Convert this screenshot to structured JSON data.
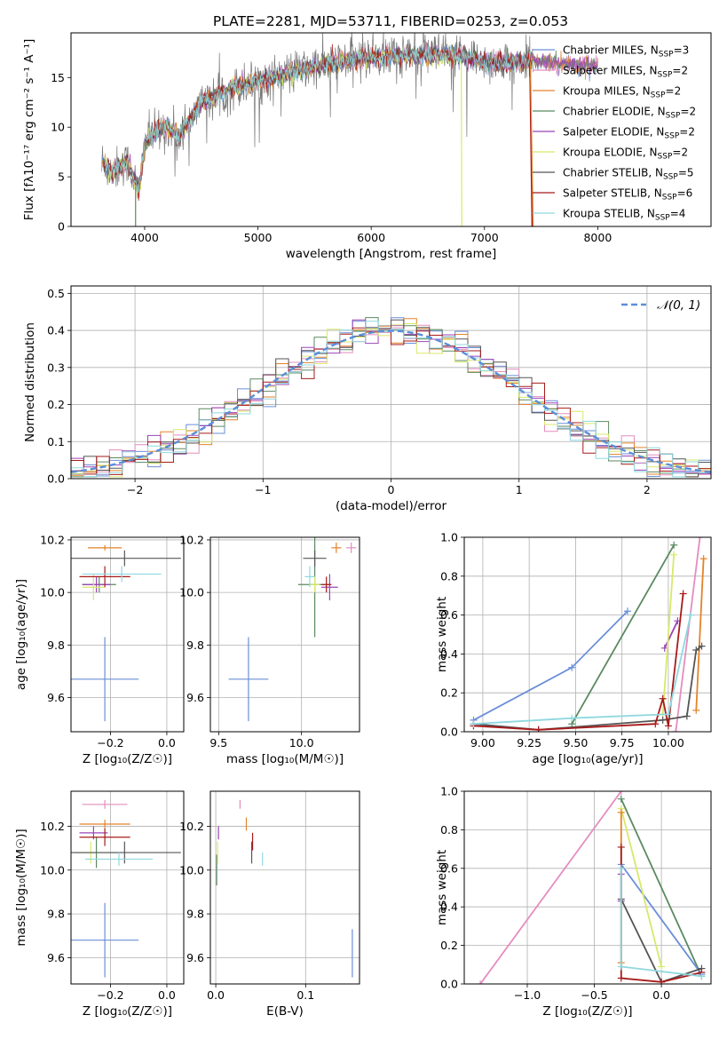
{
  "chart_data": [
    {
      "type": "line",
      "title": "PLATE=2281, MJD=53711, FIBERID=0253, z=0.053",
      "xlabel": "wavelength [Angstrom, rest frame]",
      "ylabel": "Flux [fλ10⁻¹⁷ erg cm⁻² s⁻¹ A⁻¹]",
      "xlim": [
        3350,
        9000
      ],
      "ylim": [
        0,
        19.5
      ],
      "xticks": [
        "4000",
        "5000",
        "6000",
        "7000",
        "8000"
      ],
      "yticks": [
        "0",
        "5",
        "10",
        "15"
      ],
      "legend_position": "top-right",
      "series": [
        {
          "name": "Chabrier MILES, N_SSP=3",
          "legend": "Chabrier MILES, N",
          "nssp": "=3",
          "color": "#6a8fd8"
        },
        {
          "name": "Salpeter MILES, N_SSP=2",
          "legend": "Salpeter MILES, N",
          "nssp": "=2",
          "color": "#e38dbf"
        },
        {
          "name": "Kroupa MILES, N_SSP=2",
          "legend": "Kroupa MILES, N",
          "nssp": "=2",
          "color": "#e3832a"
        },
        {
          "name": "Chabrier ELODIE, N_SSP=2",
          "legend": "Chabrier ELODIE, N",
          "nssp": "=2",
          "color": "#5b8a62"
        },
        {
          "name": "Salpeter ELODIE, N_SSP=2",
          "legend": "Salpeter ELODIE, N",
          "nssp": "=2",
          "color": "#9b45b8"
        },
        {
          "name": "Kroupa ELODIE, N_SSP=2",
          "legend": "Kroupa ELODIE, N",
          "nssp": "=2",
          "color": "#d8e86a"
        },
        {
          "name": "Chabrier STELIB, N_SSP=5",
          "legend": "Chabrier STELIB, N",
          "nssp": "=5",
          "color": "#555555"
        },
        {
          "name": "Salpeter STELIB, N_SSP=6",
          "legend": "Salpeter STELIB, N",
          "nssp": "=6",
          "color": "#a81a1a"
        },
        {
          "name": "Kroupa STELIB, N_SSP=4",
          "legend": "Kroupa STELIB, N",
          "nssp": "=4",
          "color": "#8fd8df"
        }
      ],
      "spectrum_shape": {
        "x": [
          3600,
          3700,
          3850,
          3950,
          4000,
          4100,
          4200,
          4300,
          4500,
          4800,
          5200,
          5600,
          5900,
          6200,
          6500,
          6800,
          7000,
          7200,
          7400,
          7600,
          7800
        ],
        "y": [
          7,
          5.5,
          6.5,
          3.5,
          8.5,
          9.5,
          10,
          9,
          12.5,
          14,
          15.2,
          16.3,
          17,
          17.2,
          17.3,
          17.1,
          16.7,
          16.4,
          16.8,
          16.5,
          16.3
        ]
      }
    },
    {
      "type": "line",
      "xlabel": "(data-model)/error",
      "ylabel": "Normed distribution",
      "xlim": [
        -2.5,
        2.5
      ],
      "ylim": [
        0,
        0.52
      ],
      "xticks": [
        "−2",
        "−1",
        "0",
        "1",
        "2"
      ],
      "yticks": [
        "0.0",
        "0.1",
        "0.2",
        "0.3",
        "0.4",
        "0.5"
      ],
      "legend": "𝒩(0, 1)",
      "legend_position": "top-right",
      "grid": true
    },
    {
      "type": "scatter",
      "xlabel": "Z [log₁₀(Z/Z☉)]",
      "ylabel": "age  [log₁₀(age/yr)]",
      "xlim": [
        -0.34,
        0.06
      ],
      "ylim": [
        9.47,
        10.21
      ],
      "xticks": [
        "−0.2",
        "0.0"
      ],
      "yticks": [
        "9.6",
        "9.8",
        "10.0",
        "10.2"
      ],
      "points": [
        {
          "x": -0.22,
          "y": 9.67,
          "xerr": 0.12,
          "yerr": 0.16
        },
        {
          "x": -0.26,
          "y": 10.03,
          "xerr": 0.04,
          "yerr": 0.03
        },
        {
          "x": -0.22,
          "y": 10.17,
          "xerr": 0.06,
          "yerr": 0.01
        },
        {
          "x": -0.24,
          "y": 10.03,
          "xerr": 0.06,
          "yerr": 0.03
        },
        {
          "x": -0.25,
          "y": 10.03,
          "xerr": 0.05,
          "yerr": 0.03
        },
        {
          "x": -0.26,
          "y": 10.02,
          "xerr": 0.04,
          "yerr": 0.05
        },
        {
          "x": -0.15,
          "y": 10.13,
          "xerr": 0.2,
          "yerr": 0.03
        },
        {
          "x": -0.22,
          "y": 10.06,
          "xerr": 0.09,
          "yerr": 0.04
        },
        {
          "x": -0.16,
          "y": 10.07,
          "xerr": 0.14,
          "yerr": 0.03
        }
      ]
    },
    {
      "type": "scatter",
      "xlabel": "mass [log₁₀(M/M☉)]",
      "xlim": [
        9.45,
        10.35
      ],
      "ylim": [
        9.47,
        10.21
      ],
      "xticks": [
        "9.5",
        "10.0"
      ],
      "yticks": [
        "9.6",
        "9.8",
        "10.0",
        "10.2"
      ],
      "points": [
        {
          "x": 9.68,
          "y": 9.67,
          "xerr": 0.12,
          "yerr": 0.16
        },
        {
          "x": 10.3,
          "y": 10.17,
          "xerr": 0.03,
          "yerr": 0.02
        },
        {
          "x": 10.21,
          "y": 10.17,
          "xerr": 0.03,
          "yerr": 0.02
        },
        {
          "x": 10.08,
          "y": 10.03,
          "xerr": 0.1,
          "yerr": 0.2
        },
        {
          "x": 10.17,
          "y": 10.02,
          "xerr": 0.05,
          "yerr": 0.05
        },
        {
          "x": 10.08,
          "y": 10.03,
          "xerr": 0.03,
          "yerr": 0.03
        },
        {
          "x": 10.08,
          "y": 10.13,
          "xerr": 0.07,
          "yerr": 0.03
        },
        {
          "x": 10.15,
          "y": 10.03,
          "xerr": 0.03,
          "yerr": 0.03
        },
        {
          "x": 10.05,
          "y": 10.06,
          "xerr": 0.03,
          "yerr": 0.04
        }
      ]
    },
    {
      "type": "line",
      "xlabel": "age  [log₁₀(age/yr)]",
      "ylabel": "mass weight",
      "xlim": [
        8.9,
        10.23
      ],
      "ylim": [
        0,
        1
      ],
      "xticks": [
        "9.00",
        "9.25",
        "9.50",
        "9.75",
        "10.00"
      ],
      "yticks": [
        "0.0",
        "0.2",
        "0.4",
        "0.6",
        "0.8",
        "1.0"
      ],
      "grid": true,
      "series": [
        {
          "color": "#6a8fd8",
          "x": [
            8.95,
            9.48,
            9.78
          ],
          "y": [
            0.06,
            0.33,
            0.62
          ]
        },
        {
          "color": "#e38dbf",
          "x": [
            10.04,
            10.17
          ],
          "y": [
            0.0,
            1.0
          ]
        },
        {
          "color": "#e3832a",
          "x": [
            10.15,
            10.19
          ],
          "y": [
            0.11,
            0.89
          ]
        },
        {
          "color": "#5b8a62",
          "x": [
            9.48,
            10.03
          ],
          "y": [
            0.04,
            0.96
          ]
        },
        {
          "color": "#9b45b8",
          "x": [
            9.98,
            10.05
          ],
          "y": [
            0.43,
            0.57
          ]
        },
        {
          "color": "#d8e86a",
          "x": [
            9.97,
            10.03
          ],
          "y": [
            0.09,
            0.91
          ]
        },
        {
          "color": "#555555",
          "x": [
            8.95,
            9.3,
            9.97,
            10.1,
            10.15,
            10.18
          ],
          "y": [
            0.04,
            0.01,
            0.06,
            0.08,
            0.42,
            0.44
          ]
        },
        {
          "color": "#a81a1a",
          "x": [
            8.95,
            9.3,
            9.93,
            9.97,
            10.0,
            10.08
          ],
          "y": [
            0.03,
            0.01,
            0.04,
            0.17,
            0.03,
            0.71
          ]
        },
        {
          "color": "#8fd8df",
          "x": [
            8.95,
            9.48,
            10.0,
            10.12
          ],
          "y": [
            0.04,
            0.07,
            0.09,
            0.6
          ]
        }
      ]
    },
    {
      "type": "scatter",
      "xlabel": "Z [log₁₀(Z/Z☉)]",
      "ylabel": "mass [log₁₀(M/M☉)]",
      "xlim": [
        -0.34,
        0.06
      ],
      "ylim": [
        9.48,
        10.36
      ],
      "xticks": [
        "−0.2",
        "0.0"
      ],
      "yticks": [
        "9.6",
        "9.8",
        "10.0",
        "10.2"
      ],
      "points": [
        {
          "x": -0.22,
          "y": 9.68,
          "xerr": 0.12,
          "yerr": 0.17
        },
        {
          "x": -0.22,
          "y": 10.3,
          "xerr": 0.08,
          "yerr": 0.02
        },
        {
          "x": -0.22,
          "y": 10.21,
          "xerr": 0.09,
          "yerr": 0.02
        },
        {
          "x": -0.25,
          "y": 10.08,
          "xerr": 0.08,
          "yerr": 0.07
        },
        {
          "x": -0.26,
          "y": 10.17,
          "xerr": 0.05,
          "yerr": 0.03
        },
        {
          "x": -0.27,
          "y": 10.08,
          "xerr": 0.04,
          "yerr": 0.05
        },
        {
          "x": -0.15,
          "y": 10.08,
          "xerr": 0.2,
          "yerr": 0.05
        },
        {
          "x": -0.22,
          "y": 10.15,
          "xerr": 0.09,
          "yerr": 0.04
        },
        {
          "x": -0.17,
          "y": 10.05,
          "xerr": 0.12,
          "yerr": 0.03
        }
      ]
    },
    {
      "type": "scatter",
      "xlabel": "E(B-V)",
      "xlim": [
        -0.006,
        0.16
      ],
      "ylim": [
        9.48,
        10.36
      ],
      "xticks": [
        "0.0",
        "0.1"
      ],
      "yticks": [
        "9.6",
        "9.8",
        "10.0",
        "10.2"
      ],
      "points": [
        {
          "x": 0.152,
          "y": 9.62,
          "yerr": 0.11
        },
        {
          "x": 0.027,
          "y": 10.3,
          "yerr": 0.02
        },
        {
          "x": 0.034,
          "y": 10.21,
          "yerr": 0.03
        },
        {
          "x": 0.001,
          "y": 10.0,
          "yerr": 0.07
        },
        {
          "x": 0.003,
          "y": 10.17,
          "yerr": 0.03
        },
        {
          "x": 0.002,
          "y": 10.08,
          "yerr": 0.05
        },
        {
          "x": 0.04,
          "y": 10.08,
          "yerr": 0.05
        },
        {
          "x": 0.041,
          "y": 10.13,
          "yerr": 0.04
        },
        {
          "x": 0.052,
          "y": 10.05,
          "yerr": 0.03
        }
      ]
    },
    {
      "type": "line",
      "xlabel": "Z [log₁₀(Z/Z☉)]",
      "ylabel": "mass weight",
      "xlim": [
        -1.47,
        0.37
      ],
      "ylim": [
        0,
        1
      ],
      "xticks": [
        "−1.0",
        "−0.5",
        "0.0"
      ],
      "yticks": [
        "0.0",
        "0.2",
        "0.4",
        "0.6",
        "0.8",
        "1.0"
      ],
      "grid": true,
      "series": [
        {
          "color": "#e38dbf",
          "x": [
            -1.35,
            -0.3
          ],
          "y": [
            0.0,
            1.0
          ]
        },
        {
          "color": "#5b8a62",
          "x": [
            -0.3,
            0.3
          ],
          "y": [
            0.96,
            0.04
          ]
        },
        {
          "color": "#6a8fd8",
          "x": [
            -0.3,
            0.3
          ],
          "y": [
            0.62,
            0.05
          ]
        },
        {
          "color": "#d8e86a",
          "x": [
            -0.3,
            0.0
          ],
          "y": [
            0.91,
            0.09
          ]
        },
        {
          "color": "#9b45b8",
          "x": [
            -0.3,
            -0.3
          ],
          "y": [
            0.43,
            0.57
          ]
        },
        {
          "color": "#e3832a",
          "x": [
            -0.3,
            -0.3
          ],
          "y": [
            0.11,
            0.89
          ]
        },
        {
          "color": "#555555",
          "x": [
            -0.3,
            0.0,
            0.3
          ],
          "y": [
            0.44,
            0.01,
            0.08
          ]
        },
        {
          "color": "#a81a1a",
          "x": [
            -0.3,
            -0.3,
            0.0,
            0.3
          ],
          "y": [
            0.71,
            0.03,
            0.01,
            0.06
          ]
        },
        {
          "color": "#8fd8df",
          "x": [
            -0.3,
            -0.3,
            0.3
          ],
          "y": [
            0.6,
            0.09,
            0.04
          ]
        }
      ]
    }
  ]
}
